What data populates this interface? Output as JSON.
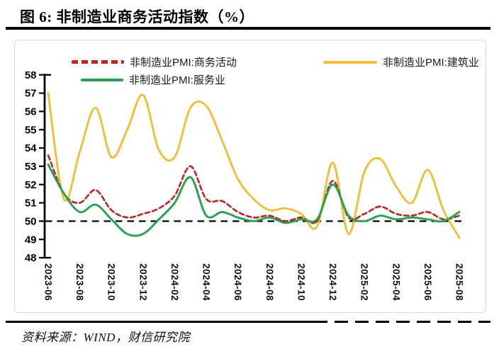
{
  "header": {
    "title": "图 6:  非制造业商务活动指数（%）"
  },
  "footer": {
    "source": "资料来源：WIND，财信研究院"
  },
  "chart_data": {
    "type": "line",
    "title": "图 6: 非制造业商务活动指数（%）",
    "x": [
      "2023-06",
      "2023-07",
      "2023-08",
      "2023-09",
      "2023-10",
      "2023-11",
      "2023-12",
      "2024-01",
      "2024-02",
      "2024-03",
      "2024-04",
      "2024-05",
      "2024-06",
      "2024-07",
      "2024-08",
      "2024-09",
      "2024-10",
      "2024-11",
      "2024-12",
      "2025-01",
      "2025-02",
      "2025-03",
      "2025-04",
      "2025-05",
      "2025-06",
      "2025-07",
      "2025-08"
    ],
    "x_tick_labels": [
      "2023-06",
      "2023-08",
      "2023-10",
      "2023-12",
      "2024-02",
      "2024-04",
      "2024-06",
      "2024-08",
      "2024-10",
      "2024-12",
      "2025-02",
      "2025-04",
      "2025-06",
      "2025-08"
    ],
    "ylim": [
      48,
      58
    ],
    "ytick_step": 1,
    "reference_line_y": 50,
    "grid": false,
    "legend_position": "top",
    "line_smoothing": true,
    "axis_color": "#000000",
    "series": [
      {
        "name": "非制造业PMI:商务活动",
        "color": "#C8201F",
        "line_style": "dashed",
        "values": [
          53.6,
          51.5,
          51.0,
          51.7,
          50.6,
          50.2,
          50.4,
          50.7,
          51.4,
          53.0,
          51.2,
          51.1,
          50.5,
          50.2,
          50.3,
          50.0,
          50.2,
          50.0,
          52.2,
          50.2,
          50.4,
          50.8,
          50.4,
          50.3,
          50.5,
          50.1,
          50.3
        ]
      },
      {
        "name": "非制造业PMI:服务业",
        "color": "#20A451",
        "line_style": "solid",
        "values": [
          53.1,
          51.5,
          50.5,
          50.9,
          50.1,
          49.3,
          49.3,
          50.1,
          51.0,
          52.4,
          50.3,
          50.5,
          50.2,
          50.0,
          50.2,
          49.9,
          50.1,
          50.1,
          52.0,
          50.3,
          50.0,
          50.3,
          50.1,
          50.2,
          50.1,
          50.0,
          50.5
        ]
      },
      {
        "name": "非制造业PMI:建筑业",
        "color": "#F2BE33",
        "line_style": "solid",
        "values": [
          57.0,
          51.2,
          53.8,
          56.2,
          53.5,
          55.0,
          56.9,
          53.9,
          53.5,
          56.2,
          56.3,
          54.4,
          52.3,
          51.2,
          50.6,
          50.7,
          50.4,
          49.7,
          53.2,
          49.3,
          52.7,
          53.4,
          51.9,
          51.0,
          52.8,
          50.6,
          49.1
        ]
      }
    ]
  }
}
